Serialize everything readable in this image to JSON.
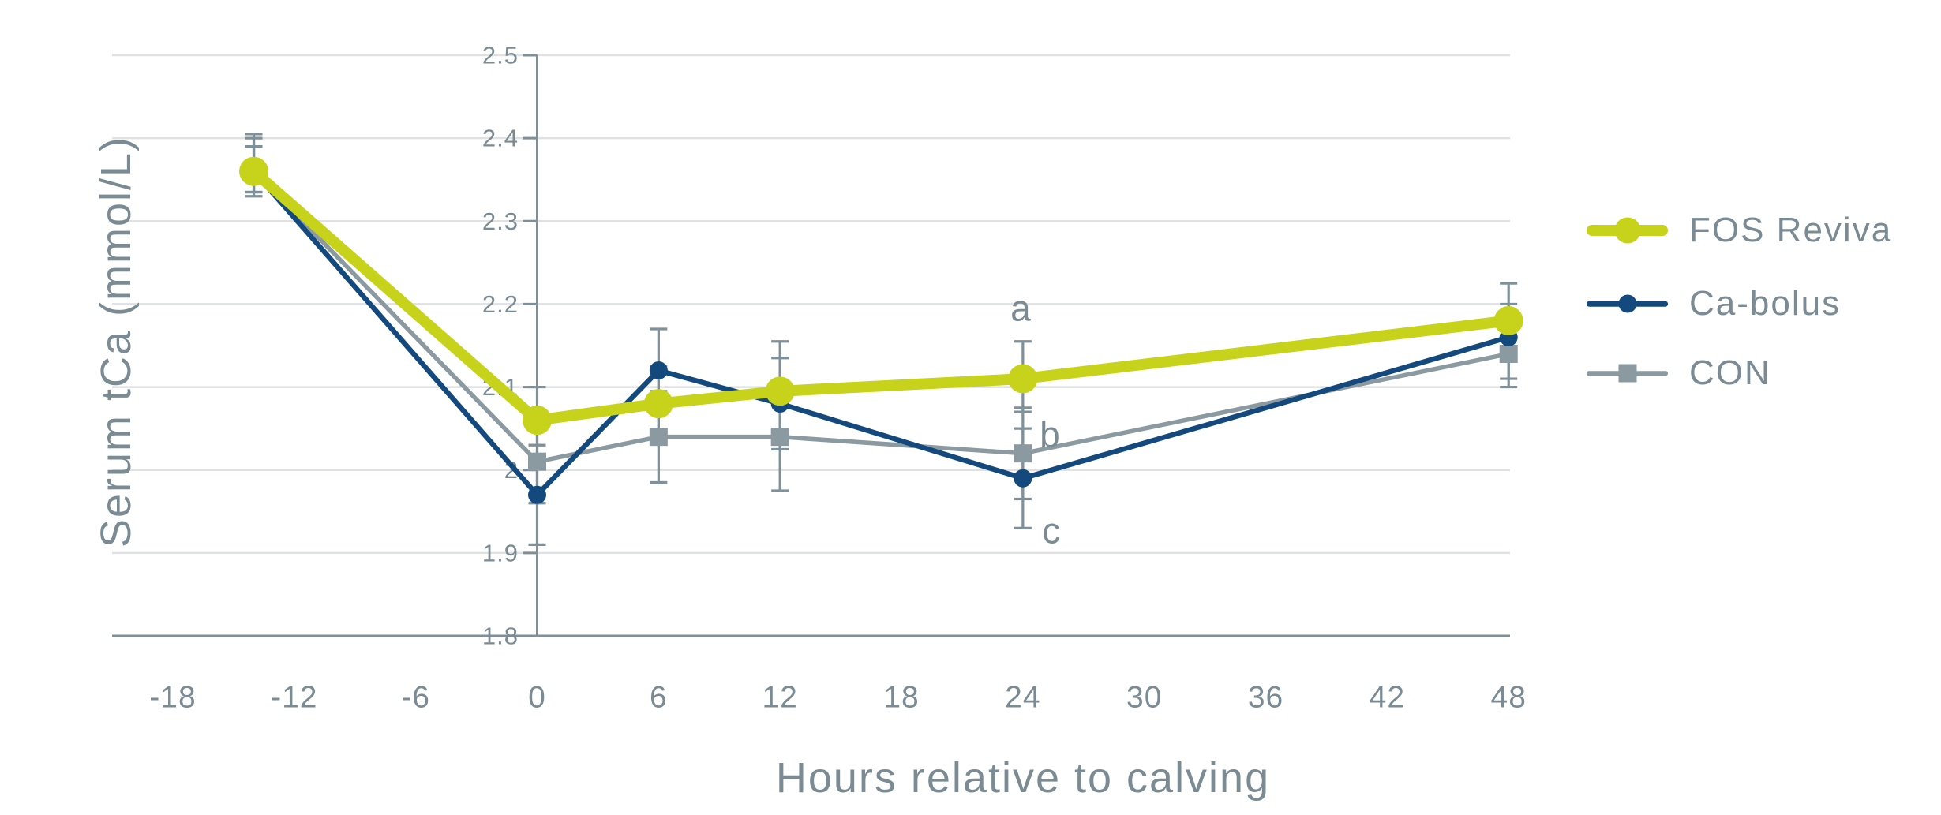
{
  "page": {
    "background": "#ffffff"
  },
  "chart_data": {
    "type": "line",
    "title": "",
    "xlabel": "Hours relative to calving",
    "ylabel": "Serum tCa (mmol/L)",
    "x_tick_labels": [
      "-18",
      "-12",
      "-6",
      "0",
      "6",
      "12",
      "18",
      "24",
      "30",
      "36",
      "42",
      "48"
    ],
    "y_tick_labels": [
      "2.5",
      "2.4",
      "2.3",
      "2.2",
      "2.1",
      "2",
      "1.9",
      "1.8"
    ],
    "xlim": [
      -21,
      48
    ],
    "ylim": [
      1.8,
      2.5
    ],
    "grid": "horizontal",
    "legend_position": "right",
    "series": [
      {
        "name": "FOS Reviva",
        "color": "#c6d31a",
        "marker": "circle",
        "marker_size": 37,
        "line_width": 14,
        "x": [
          -14,
          0,
          6,
          12,
          24,
          48
        ],
        "y": [
          2.36,
          2.06,
          2.08,
          2.095,
          2.11,
          2.18
        ],
        "err_lo": [
          2.335,
          2.03,
          2.035,
          2.035,
          2.07,
          2.14
        ],
        "err_hi": [
          2.405,
          2.1,
          2.125,
          2.155,
          2.155,
          2.225
        ]
      },
      {
        "name": "Ca-bolus",
        "color": "#14497e",
        "marker": "circle",
        "marker_size": 23,
        "line_width": 6.5,
        "x": [
          -14,
          0,
          6,
          12,
          24,
          48
        ],
        "y": [
          2.36,
          1.97,
          2.12,
          2.08,
          1.99,
          2.16
        ],
        "err_lo": [
          2.33,
          1.91,
          2.07,
          2.025,
          1.93,
          2.11
        ],
        "err_hi": [
          2.39,
          2.03,
          2.17,
          2.135,
          2.05,
          2.2
        ]
      },
      {
        "name": "CON",
        "color": "#8b99a0",
        "marker": "square",
        "marker_size": 23,
        "line_width": 5.5,
        "x": [
          -14,
          0,
          6,
          12,
          24,
          48
        ],
        "y": [
          2.36,
          2.01,
          2.04,
          2.04,
          2.02,
          2.14
        ],
        "err_lo": [
          2.335,
          1.96,
          1.985,
          1.975,
          1.965,
          2.1
        ],
        "err_hi": [
          2.4,
          2.06,
          2.095,
          2.105,
          2.075,
          2.18
        ]
      }
    ],
    "annotations": [
      {
        "text": "a",
        "x": 24,
        "y": 2.195,
        "dx": -3
      },
      {
        "text": "b",
        "x": 24,
        "y": 2.043,
        "dx": 34
      },
      {
        "text": "c",
        "x": 24,
        "y": 1.927,
        "dx": 36
      }
    ],
    "colors": {
      "grid": "#dfe1e2",
      "axis": "#7e8f98",
      "tick_text": "#7b8b93",
      "error_bar": "#7e909a"
    }
  }
}
